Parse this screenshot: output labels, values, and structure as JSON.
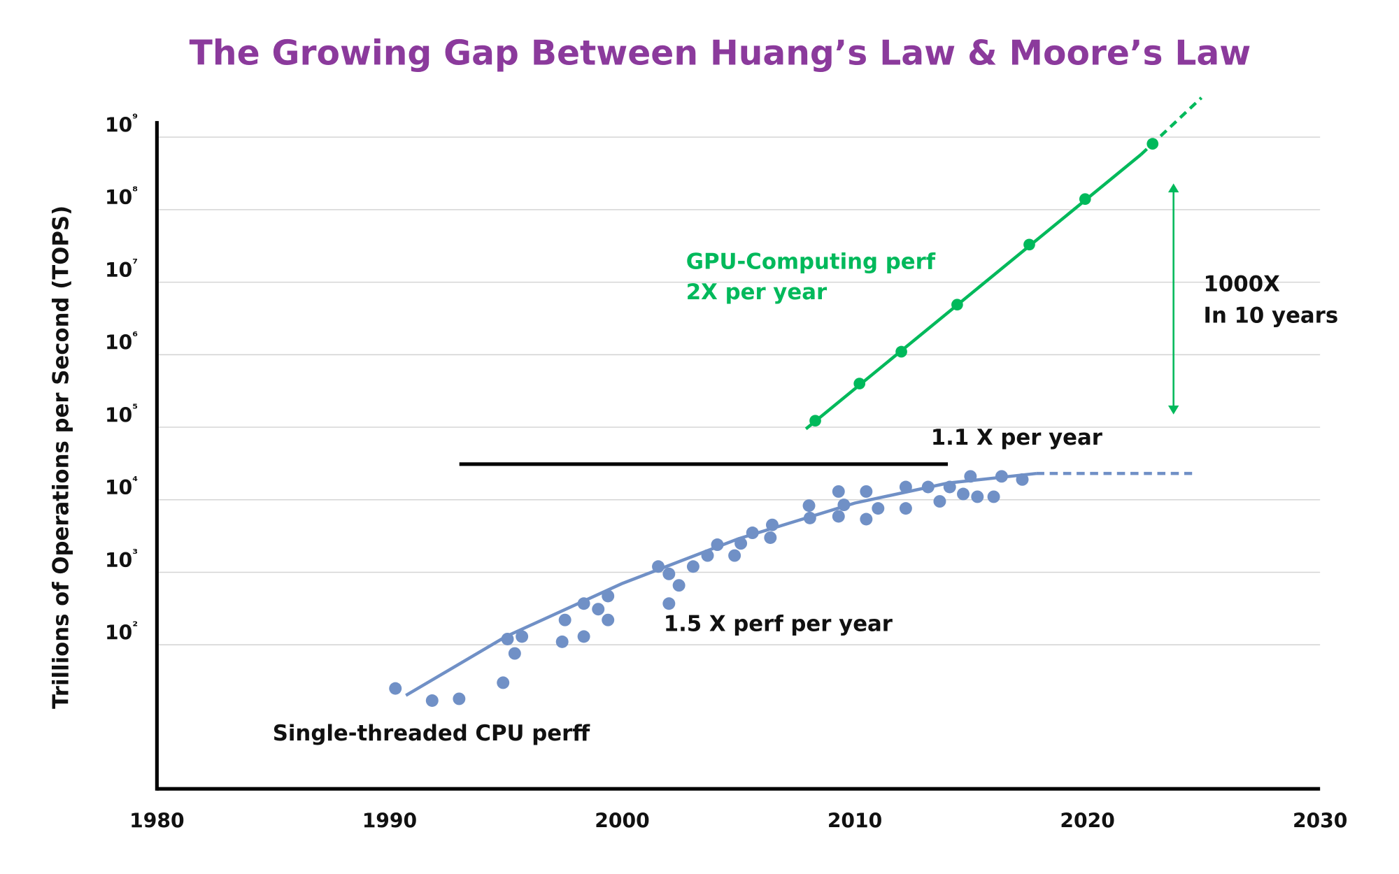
{
  "chart_data": {
    "type": "scatter",
    "title": "The Growing Gap Between  Huang’s Law & Moore’s Law",
    "xlabel": "",
    "ylabel": "Trillions of Operations per Second (TOPS)",
    "xlim": [
      1980,
      2030
    ],
    "ylim": [
      1,
      1000000000
    ],
    "y_scale": "log",
    "grid": "horizontal",
    "x_ticks": [
      1980,
      1990,
      2000,
      2010,
      2020,
      2030
    ],
    "x_tick_labels": [
      "1980",
      "1990",
      "2000",
      "2010",
      "2020",
      "2030"
    ],
    "y_ticks": [
      100,
      1000,
      10000,
      100000,
      1000000,
      10000000,
      100000000,
      1000000000
    ],
    "y_tick_labels": [
      "10²",
      "10³",
      "10⁴",
      "10⁵",
      "10⁶",
      "10⁷",
      "10⁸",
      "10⁹"
    ],
    "colors": {
      "title": "#8B3A9C",
      "gpu": "#00B95B",
      "cpu": "#7090C6",
      "text": "#111111",
      "grid": "#D5D5D5"
    },
    "series": [
      {
        "label_id": "gpu",
        "points": [
          [
            2008.3,
            123000
          ],
          [
            2010.2,
            400000
          ],
          [
            2012.0,
            1100000
          ],
          [
            2014.4,
            4900000
          ],
          [
            2017.5,
            33000000
          ],
          [
            2019.9,
            140000000
          ],
          [
            2022.8,
            810000000
          ]
        ],
        "trend_solid": [
          [
            2007.9,
            95000
          ],
          [
            2022.3,
            575000000
          ]
        ],
        "trend_dashed": [
          [
            2022.3,
            575000000
          ],
          [
            2024.9,
            3500000000
          ]
        ]
      },
      {
        "label_id": "cpu",
        "points": [
          [
            1990.25,
            25
          ],
          [
            1991.83,
            17
          ],
          [
            1992.99,
            18
          ],
          [
            1994.88,
            30
          ],
          [
            1995.07,
            120
          ],
          [
            1995.38,
            76
          ],
          [
            1995.69,
            130
          ],
          [
            1997.42,
            110
          ],
          [
            1997.54,
            220
          ],
          [
            1998.35,
            370
          ],
          [
            1998.35,
            130
          ],
          [
            1998.97,
            310
          ],
          [
            1999.39,
            470
          ],
          [
            1999.39,
            220
          ],
          [
            2001.55,
            1200
          ],
          [
            2002.01,
            950
          ],
          [
            2002.01,
            370
          ],
          [
            2002.44,
            660
          ],
          [
            2003.05,
            1200
          ],
          [
            2003.67,
            1700
          ],
          [
            2004.09,
            2400
          ],
          [
            2004.83,
            1700
          ],
          [
            2005.1,
            2500
          ],
          [
            2005.6,
            3500
          ],
          [
            2006.37,
            3000
          ],
          [
            2006.45,
            4500
          ],
          [
            2008.03,
            8300
          ],
          [
            2008.07,
            5600
          ],
          [
            2009.3,
            13000
          ],
          [
            2009.3,
            5900
          ],
          [
            2009.53,
            8500
          ],
          [
            2010.49,
            13000
          ],
          [
            2010.49,
            5400
          ],
          [
            2011.0,
            7600
          ],
          [
            2012.19,
            15000
          ],
          [
            2012.19,
            7600
          ],
          [
            2013.15,
            15000
          ],
          [
            2013.65,
            9500
          ],
          [
            2014.08,
            15000
          ],
          [
            2014.66,
            12000
          ],
          [
            2014.97,
            21000
          ],
          [
            2015.27,
            11000
          ],
          [
            2015.97,
            11000
          ],
          [
            2016.31,
            21000
          ],
          [
            2017.2,
            19000
          ]
        ],
        "trend_solid": [
          [
            1990.7,
            20
          ],
          [
            1995,
            130
          ],
          [
            2000,
            700
          ],
          [
            2005,
            2900
          ],
          [
            2010,
            9000
          ],
          [
            2014,
            17000
          ],
          [
            2017.8,
            23000
          ]
        ],
        "trend_dashed": [
          [
            2017.8,
            23000
          ],
          [
            2024.5,
            23000
          ]
        ]
      }
    ],
    "reference_line": {
      "x": [
        1993,
        2014
      ],
      "y": 31000
    },
    "gap_arrow": {
      "x": 2023.7,
      "y": [
        230000000,
        150000
      ]
    },
    "annotations": {
      "gpu_line1": "GPU-Computing perf",
      "gpu_line2": "2X per year",
      "gap_line1": "1000X",
      "gap_line2": "In 10 years",
      "flat_rate": "1.1 X per year",
      "cpu_rate": "1.5 X perf per year",
      "cpu_label": "Single-threaded CPU perff"
    }
  }
}
